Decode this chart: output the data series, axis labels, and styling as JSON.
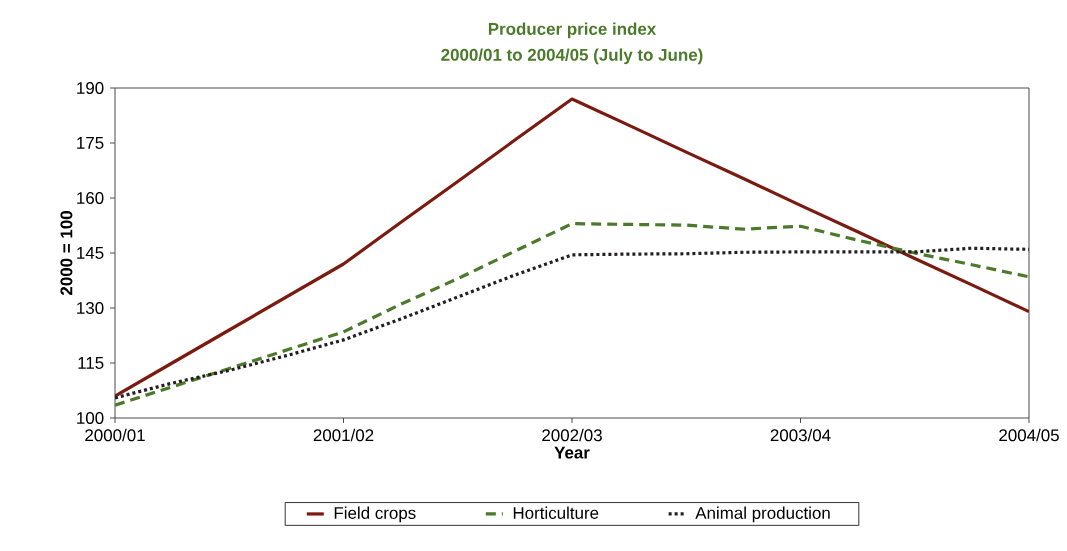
{
  "chart_data": {
    "type": "line",
    "title": "Producer price index",
    "subtitle": "2000/01 to 2004/05 (July to June)",
    "xlabel": "Year",
    "ylabel": "2000 = 100",
    "categories": [
      "2000/01",
      null,
      null,
      null,
      "2001/02",
      null,
      null,
      null,
      "2002/03",
      null,
      null,
      null,
      "2003/04",
      null,
      null,
      null,
      "2004/05"
    ],
    "ylim": [
      100,
      190
    ],
    "yticks": [
      100,
      115,
      130,
      145,
      160,
      175,
      190
    ],
    "grid": false,
    "legend": "bottom",
    "marker": "none",
    "series": [
      {
        "name": "Field crops",
        "color": "#7b1a0e",
        "line_style": "solid",
        "values": [
          106,
          115,
          124,
          133,
          142,
          153.3,
          164.5,
          175.8,
          187,
          179.8,
          172.5,
          165.3,
          158,
          150.8,
          143.5,
          136.3,
          129
        ]
      },
      {
        "name": "Horticulture",
        "color": "#4a7a2a",
        "line_style": "dashed",
        "values": [
          103.5,
          108.5,
          113.5,
          118.5,
          123.5,
          131,
          138,
          145.5,
          153,
          152.8,
          152.6,
          151.5,
          152.3,
          148.5,
          145,
          141.8,
          138.5
        ]
      },
      {
        "name": "Animal production",
        "color": "#231f20",
        "line_style": "dotted",
        "values": [
          105.5,
          109.5,
          113,
          117,
          121.3,
          127,
          133,
          139,
          144.5,
          144.7,
          144.8,
          145.2,
          145.3,
          145.3,
          145.3,
          146.3,
          146
        ]
      }
    ]
  }
}
